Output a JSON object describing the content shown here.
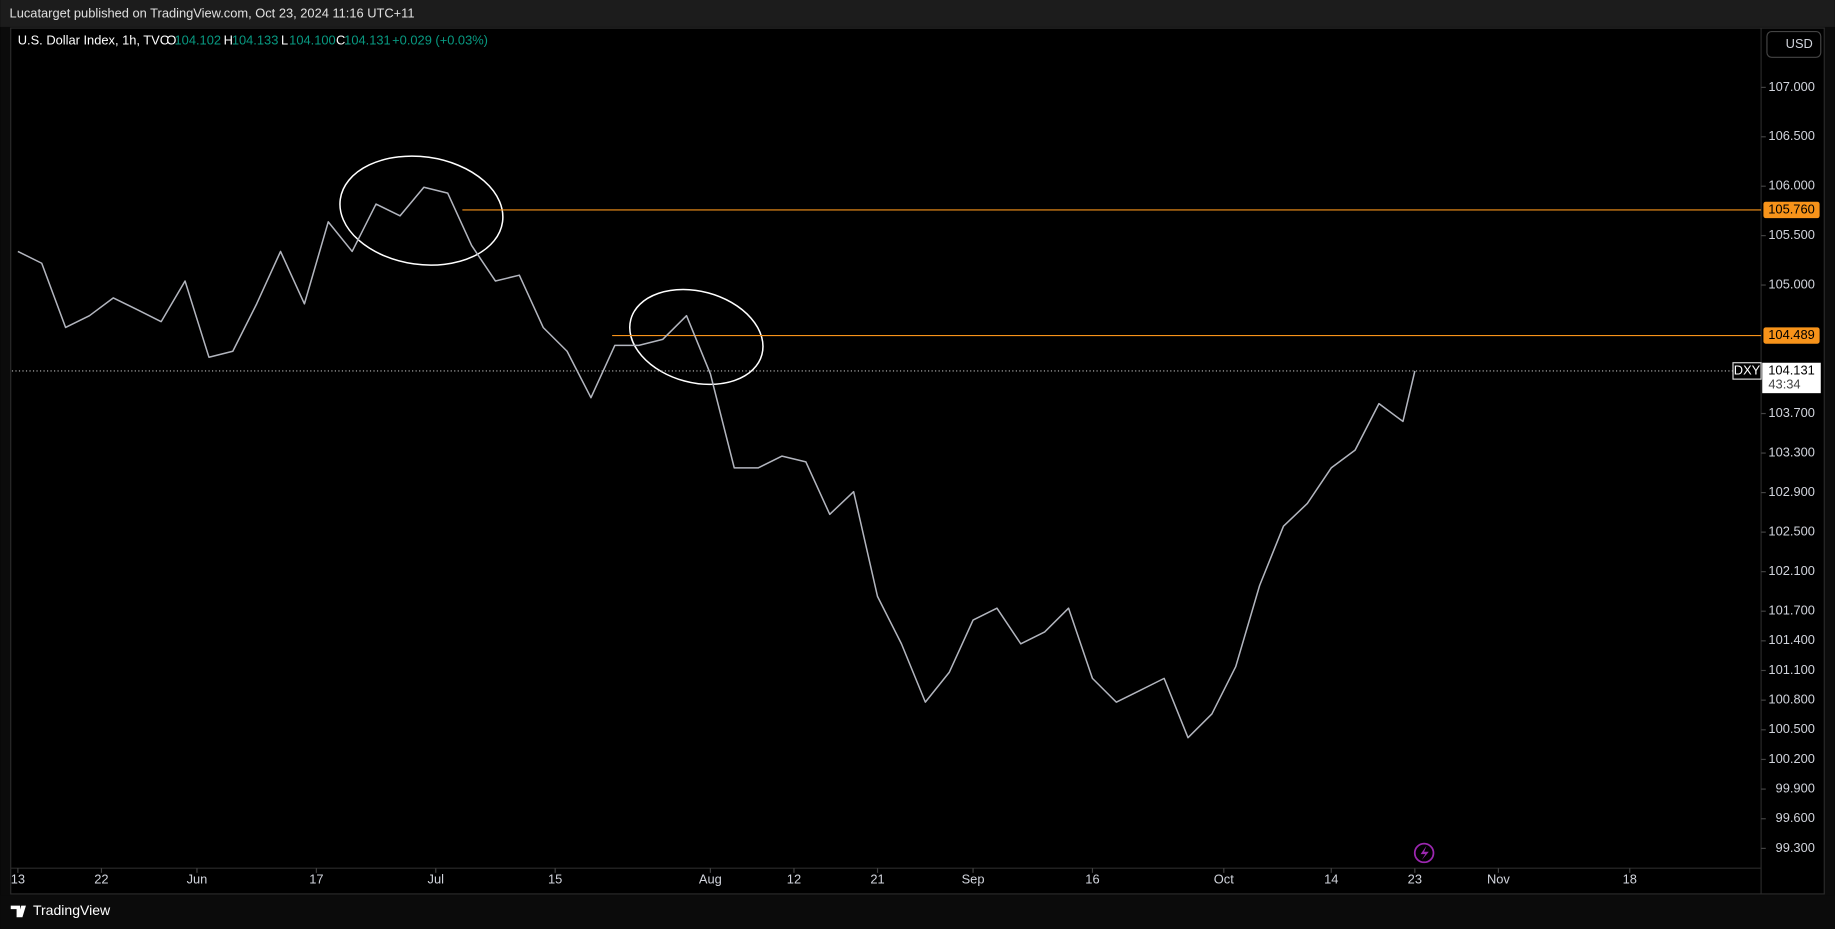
{
  "header": "Lucatarget published on TradingView.com, Oct 23, 2024 11:16 UTC+11",
  "footer": "TradingView",
  "currency": "USD",
  "chart_data": {
    "type": "line",
    "title": "U.S. Dollar Index, 1h, TVC",
    "ohlc": [
      {
        "key": "O",
        "value": 104.102,
        "label": "104.102"
      },
      {
        "key": "H",
        "value": 104.133,
        "label": "104.133"
      },
      {
        "key": "L",
        "value": 104.1,
        "label": "104.100"
      },
      {
        "key": "C",
        "value": 104.131,
        "label": "104.131"
      }
    ],
    "change": "+0.029 (+0.03%)",
    "x": [
      0,
      2,
      4,
      6,
      8,
      10,
      12,
      14,
      16,
      18,
      20,
      22,
      24,
      26,
      28,
      30,
      32,
      34,
      36,
      38,
      40,
      42,
      44,
      46,
      48,
      50,
      52,
      54,
      56,
      58,
      60,
      62,
      64,
      66,
      68,
      70,
      72,
      74,
      76,
      78,
      80,
      82,
      84,
      86,
      88,
      90,
      92,
      94,
      96,
      98,
      100,
      102,
      104,
      106,
      108,
      110,
      112,
      114,
      116,
      117
    ],
    "series": [
      {
        "name": "DXY",
        "color": "#b2b5be",
        "values": [
          105.34,
          105.22,
          104.57,
          104.69,
          104.87,
          104.75,
          104.63,
          105.04,
          104.27,
          104.33,
          104.81,
          105.34,
          104.81,
          105.64,
          105.34,
          105.82,
          105.7,
          105.99,
          105.93,
          105.4,
          105.04,
          105.1,
          104.57,
          104.33,
          103.86,
          104.39,
          104.39,
          104.45,
          104.69,
          104.1,
          103.15,
          103.15,
          103.27,
          103.21,
          102.68,
          102.91,
          101.85,
          101.37,
          100.78,
          101.08,
          101.61,
          101.73,
          101.37,
          101.49,
          101.73,
          101.02,
          100.78,
          100.9,
          101.02,
          100.42,
          100.66,
          101.14,
          101.96,
          102.56,
          102.79,
          103.15,
          103.33,
          103.8,
          103.62,
          104.131
        ]
      }
    ],
    "xlim": [
      -0.5,
      146
    ],
    "xticks": [
      {
        "value": 0,
        "label": "13"
      },
      {
        "value": 7,
        "label": "22"
      },
      {
        "value": 15,
        "label": "Jun"
      },
      {
        "value": 25,
        "label": "17"
      },
      {
        "value": 35,
        "label": "Jul"
      },
      {
        "value": 45,
        "label": "15"
      },
      {
        "value": 58,
        "label": "Aug"
      },
      {
        "value": 65,
        "label": "12"
      },
      {
        "value": 72,
        "label": "21"
      },
      {
        "value": 80,
        "label": "Sep"
      },
      {
        "value": 90,
        "label": "16"
      },
      {
        "value": 101,
        "label": "Oct"
      },
      {
        "value": 110,
        "label": "14"
      },
      {
        "value": 117,
        "label": "23"
      },
      {
        "value": 124,
        "label": "Nov"
      },
      {
        "value": 135,
        "label": "18"
      }
    ],
    "ylim": [
      99.1,
      107.6
    ],
    "yticks": [
      {
        "value": 107,
        "label": "107.000"
      },
      {
        "value": 106.5,
        "label": "106.500"
      },
      {
        "value": 106,
        "label": "106.000"
      },
      {
        "value": 105.5,
        "label": "105.500"
      },
      {
        "value": 105,
        "label": "105.000"
      },
      {
        "value": 103.7,
        "label": "103.700"
      },
      {
        "value": 103.3,
        "label": "103.300"
      },
      {
        "value": 102.9,
        "label": "102.900"
      },
      {
        "value": 102.5,
        "label": "102.500"
      },
      {
        "value": 102.1,
        "label": "102.100"
      },
      {
        "value": 101.7,
        "label": "101.700"
      },
      {
        "value": 101.4,
        "label": "101.400"
      },
      {
        "value": 101.1,
        "label": "101.100"
      },
      {
        "value": 100.8,
        "label": "100.800"
      },
      {
        "value": 100.5,
        "label": "100.500"
      },
      {
        "value": 100.2,
        "label": "100.200"
      },
      {
        "value": 99.9,
        "label": "99.900"
      },
      {
        "value": 99.6,
        "label": "99.600"
      },
      {
        "value": 99.3,
        "label": "99.300"
      }
    ],
    "levels": [
      {
        "value": 105.76,
        "label": "105.760",
        "color": "#f7931a"
      },
      {
        "value": 104.489,
        "label": "104.489",
        "color": "#f7931a"
      }
    ],
    "last_price": {
      "symbol": "DXY",
      "value": 104.131,
      "label": "104.131",
      "countdown": "43:34"
    }
  }
}
